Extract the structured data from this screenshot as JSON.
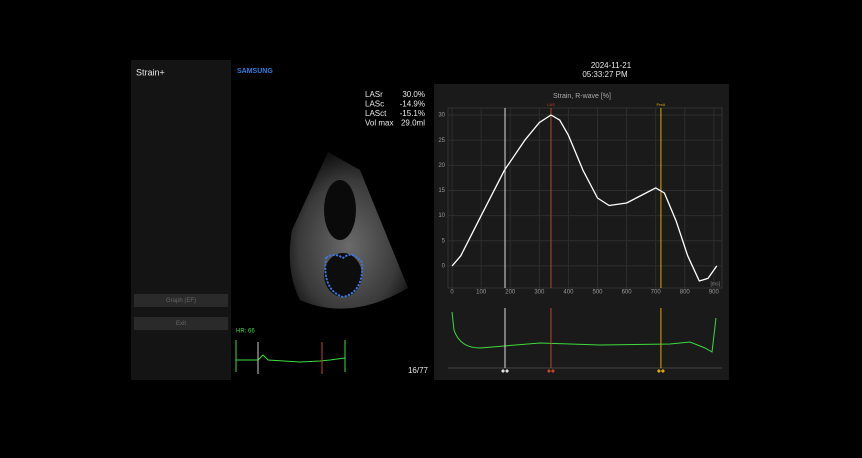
{
  "header": {
    "app": "Strain+",
    "brand": "SAMSUNG",
    "date": "2024-11-21",
    "time": "05:33:27 PM"
  },
  "buttons": [
    "Graph (EF)",
    "Exit"
  ],
  "measurements": [
    {
      "label": "LASr",
      "value": "30.0%"
    },
    {
      "label": "LASc",
      "value": "-14.9%"
    },
    {
      "label": "LASct",
      "value": "-15.1%"
    },
    {
      "label": "Vol max",
      "value": "29.0ml"
    }
  ],
  "heart_rate": "HR: 66",
  "frame": "16/77",
  "strain_chart": {
    "type": "line",
    "title": "Strain, R-wave [%]",
    "x_label": "[ms]",
    "x": [
      0,
      30,
      100,
      180,
      250,
      300,
      340,
      370,
      400,
      450,
      500,
      540,
      600,
      650,
      700,
      730,
      770,
      810,
      850,
      880,
      910
    ],
    "series": [
      {
        "color": "#ffffff",
        "values": [
          0,
          2,
          10,
          19,
          25,
          28.5,
          30,
          29,
          26,
          19,
          13.5,
          12,
          12.5,
          14,
          15.5,
          14.5,
          9,
          2,
          -3,
          -2.5,
          0
        ]
      }
    ],
    "xlim": [
      -14,
      928
    ],
    "ylim": [
      -4.4,
      31.4
    ],
    "xticks": [
      0,
      100,
      200,
      300,
      400,
      500,
      600,
      700,
      800,
      900
    ],
    "yticks": [
      0,
      5,
      10,
      15,
      20,
      25,
      30
    ],
    "grid": true,
    "markers": [
      {
        "x": 182,
        "color": "#dddddd"
      },
      {
        "label": "LAS",
        "x": 340,
        "color": "#c0432b"
      },
      {
        "label": "PreA",
        "x": 718,
        "color": "#e0a800"
      }
    ]
  }
}
